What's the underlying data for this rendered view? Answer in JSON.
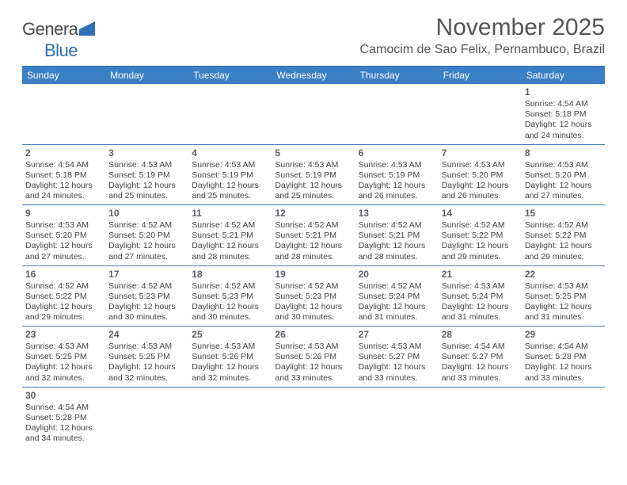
{
  "logo": {
    "part1": "Genera",
    "part2": "Blue"
  },
  "header": {
    "month": "November 2025",
    "location": "Camocim de Sao Felix, Pernambuco, Brazil"
  },
  "style": {
    "header_bg": "#3b7fc4",
    "header_text": "#ffffff",
    "border_color": "#3b7fc4",
    "title_color": "#555555",
    "cell_text_color": "#444444",
    "daynum_color": "#5a5f66",
    "logo_blue": "#2e6fb5",
    "page_bg": "#ffffff",
    "month_fontsize": 30,
    "location_fontsize": 16,
    "dayheader_fontsize": 12,
    "cell_fontsize": 10.5
  },
  "calendar": {
    "day_headers": [
      "Sunday",
      "Monday",
      "Tuesday",
      "Wednesday",
      "Thursday",
      "Friday",
      "Saturday"
    ],
    "weeks": [
      [
        null,
        null,
        null,
        null,
        null,
        null,
        {
          "n": "1",
          "sr": "4:54 AM",
          "ss": "5:18 PM",
          "dl": "12 hours and 24 minutes."
        }
      ],
      [
        {
          "n": "2",
          "sr": "4:54 AM",
          "ss": "5:18 PM",
          "dl": "12 hours and 24 minutes."
        },
        {
          "n": "3",
          "sr": "4:53 AM",
          "ss": "5:19 PM",
          "dl": "12 hours and 25 minutes."
        },
        {
          "n": "4",
          "sr": "4:53 AM",
          "ss": "5:19 PM",
          "dl": "12 hours and 25 minutes."
        },
        {
          "n": "5",
          "sr": "4:53 AM",
          "ss": "5:19 PM",
          "dl": "12 hours and 25 minutes."
        },
        {
          "n": "6",
          "sr": "4:53 AM",
          "ss": "5:19 PM",
          "dl": "12 hours and 26 minutes."
        },
        {
          "n": "7",
          "sr": "4:53 AM",
          "ss": "5:20 PM",
          "dl": "12 hours and 26 minutes."
        },
        {
          "n": "8",
          "sr": "4:53 AM",
          "ss": "5:20 PM",
          "dl": "12 hours and 27 minutes."
        }
      ],
      [
        {
          "n": "9",
          "sr": "4:53 AM",
          "ss": "5:20 PM",
          "dl": "12 hours and 27 minutes."
        },
        {
          "n": "10",
          "sr": "4:52 AM",
          "ss": "5:20 PM",
          "dl": "12 hours and 27 minutes."
        },
        {
          "n": "11",
          "sr": "4:52 AM",
          "ss": "5:21 PM",
          "dl": "12 hours and 28 minutes."
        },
        {
          "n": "12",
          "sr": "4:52 AM",
          "ss": "5:21 PM",
          "dl": "12 hours and 28 minutes."
        },
        {
          "n": "13",
          "sr": "4:52 AM",
          "ss": "5:21 PM",
          "dl": "12 hours and 28 minutes."
        },
        {
          "n": "14",
          "sr": "4:52 AM",
          "ss": "5:22 PM",
          "dl": "12 hours and 29 minutes."
        },
        {
          "n": "15",
          "sr": "4:52 AM",
          "ss": "5:22 PM",
          "dl": "12 hours and 29 minutes."
        }
      ],
      [
        {
          "n": "16",
          "sr": "4:52 AM",
          "ss": "5:22 PM",
          "dl": "12 hours and 29 minutes."
        },
        {
          "n": "17",
          "sr": "4:52 AM",
          "ss": "5:23 PM",
          "dl": "12 hours and 30 minutes."
        },
        {
          "n": "18",
          "sr": "4:52 AM",
          "ss": "5:23 PM",
          "dl": "12 hours and 30 minutes."
        },
        {
          "n": "19",
          "sr": "4:52 AM",
          "ss": "5:23 PM",
          "dl": "12 hours and 30 minutes."
        },
        {
          "n": "20",
          "sr": "4:52 AM",
          "ss": "5:24 PM",
          "dl": "12 hours and 31 minutes."
        },
        {
          "n": "21",
          "sr": "4:53 AM",
          "ss": "5:24 PM",
          "dl": "12 hours and 31 minutes."
        },
        {
          "n": "22",
          "sr": "4:53 AM",
          "ss": "5:25 PM",
          "dl": "12 hours and 31 minutes."
        }
      ],
      [
        {
          "n": "23",
          "sr": "4:53 AM",
          "ss": "5:25 PM",
          "dl": "12 hours and 32 minutes."
        },
        {
          "n": "24",
          "sr": "4:53 AM",
          "ss": "5:25 PM",
          "dl": "12 hours and 32 minutes."
        },
        {
          "n": "25",
          "sr": "4:53 AM",
          "ss": "5:26 PM",
          "dl": "12 hours and 32 minutes."
        },
        {
          "n": "26",
          "sr": "4:53 AM",
          "ss": "5:26 PM",
          "dl": "12 hours and 33 minutes."
        },
        {
          "n": "27",
          "sr": "4:53 AM",
          "ss": "5:27 PM",
          "dl": "12 hours and 33 minutes."
        },
        {
          "n": "28",
          "sr": "4:54 AM",
          "ss": "5:27 PM",
          "dl": "12 hours and 33 minutes."
        },
        {
          "n": "29",
          "sr": "4:54 AM",
          "ss": "5:28 PM",
          "dl": "12 hours and 33 minutes."
        }
      ],
      [
        {
          "n": "30",
          "sr": "4:54 AM",
          "ss": "5:28 PM",
          "dl": "12 hours and 34 minutes."
        },
        null,
        null,
        null,
        null,
        null,
        null
      ]
    ],
    "labels": {
      "sunrise": "Sunrise:",
      "sunset": "Sunset:",
      "daylight": "Daylight:"
    }
  }
}
